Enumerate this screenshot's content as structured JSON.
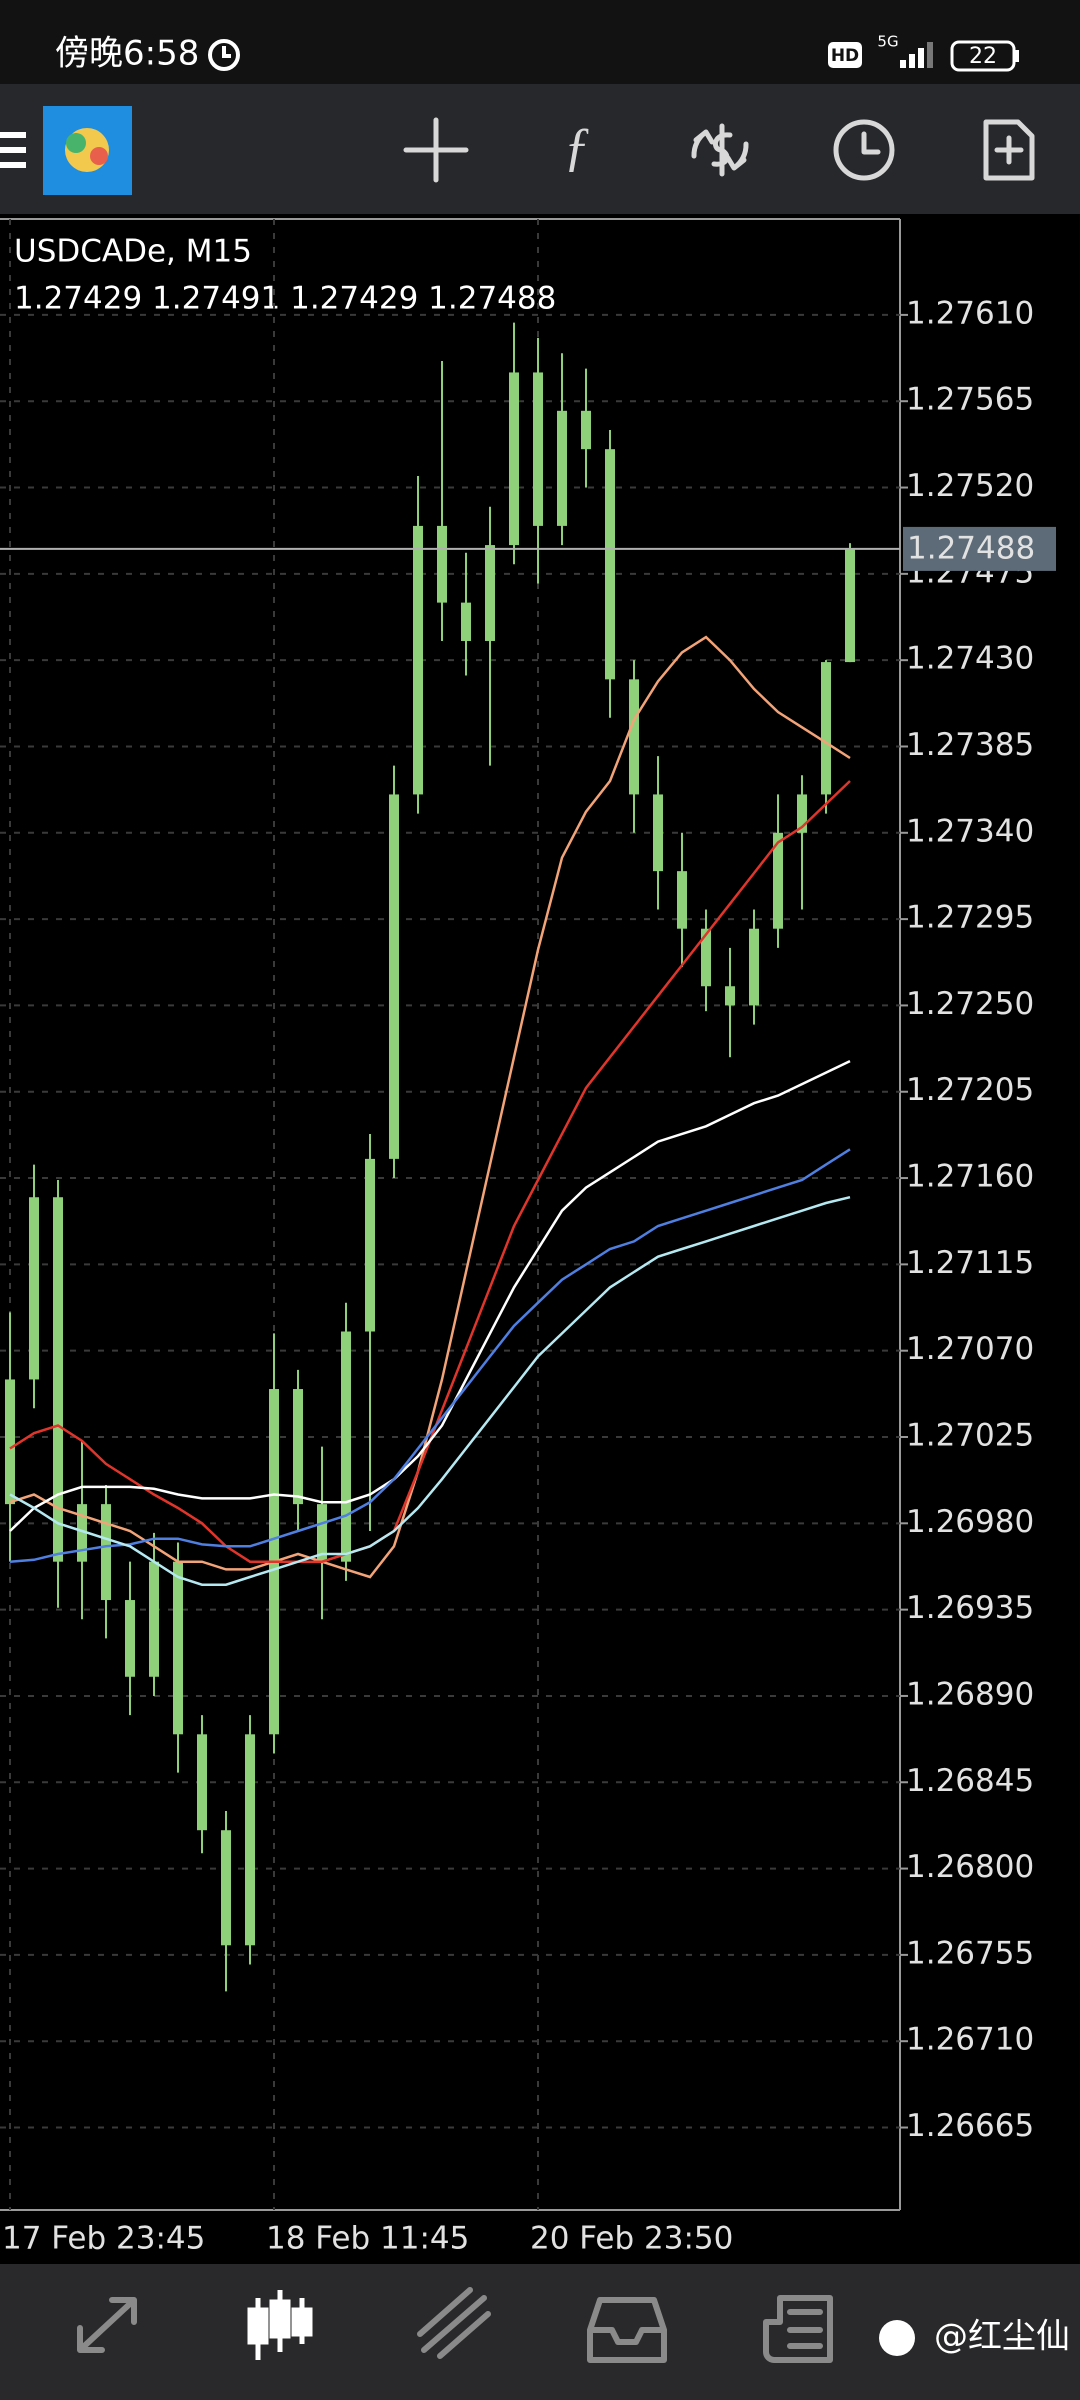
{
  "status_bar": {
    "time": "傍晚6:58",
    "hd": "HD",
    "network": "5G",
    "battery": "22"
  },
  "watermark": "@红尘仙",
  "chart_data": {
    "type": "candlestick",
    "title": "USDCADe, M15",
    "subtitle": "1.27429 1.27491 1.27429 1.27488",
    "categories": [
      "17 Feb 23:45",
      null,
      null,
      null,
      null,
      null,
      null,
      null,
      null,
      null,
      null,
      "18 Feb 11:45",
      null,
      null,
      null,
      null,
      null,
      null,
      null,
      null,
      null,
      null,
      "20 Feb 23:50",
      null,
      null,
      null,
      null,
      null,
      null,
      null,
      null,
      null,
      null,
      null,
      null,
      null
    ],
    "open": [
      1.2699,
      1.27055,
      1.2715,
      1.2696,
      1.2699,
      1.2694,
      1.269,
      1.2696,
      1.2687,
      1.2682,
      1.2676,
      1.2687,
      1.2705,
      1.2699,
      1.2696,
      1.2708,
      1.2717,
      1.2736,
      1.275,
      1.2746,
      1.2744,
      1.2749,
      1.2758,
      1.275,
      1.2756,
      1.2754,
      1.2742,
      1.2736,
      1.2732,
      1.2729,
      1.2726,
      1.2725,
      1.2729,
      1.2734,
      1.2736,
      1.27429
    ],
    "high": [
      1.2709,
      1.27167,
      1.27159,
      1.27023,
      1.27,
      1.2696,
      1.26975,
      1.2697,
      1.2688,
      1.2683,
      1.2688,
      1.27079,
      1.2706,
      1.2702,
      1.27095,
      1.27183,
      1.27375,
      1.27526,
      1.27586,
      1.27486,
      1.2751,
      1.27606,
      1.27598,
      1.2759,
      1.27582,
      1.2755,
      1.2743,
      1.2738,
      1.2734,
      1.273,
      1.2728,
      1.273,
      1.2736,
      1.2737,
      1.2743,
      1.27491
    ],
    "low": [
      1.2696,
      1.2704,
      1.26936,
      1.2693,
      1.2692,
      1.2688,
      1.2689,
      1.2685,
      1.26808,
      1.26736,
      1.2675,
      1.2686,
      1.26976,
      1.2693,
      1.2695,
      1.26976,
      1.2716,
      1.2735,
      1.2744,
      1.27422,
      1.27375,
      1.2748,
      1.2747,
      1.2749,
      1.2752,
      1.274,
      1.2734,
      1.273,
      1.2727,
      1.27247,
      1.27223,
      1.2724,
      1.2728,
      1.273,
      1.2735,
      1.27429
    ],
    "close": [
      1.27055,
      1.2715,
      1.2696,
      1.2699,
      1.2694,
      1.269,
      1.2696,
      1.2687,
      1.2682,
      1.2676,
      1.2687,
      1.2705,
      1.2699,
      1.2696,
      1.2708,
      1.2717,
      1.2736,
      1.275,
      1.2746,
      1.2744,
      1.2749,
      1.2758,
      1.275,
      1.2756,
      1.2754,
      1.2742,
      1.2736,
      1.2732,
      1.2729,
      1.2726,
      1.2725,
      1.2729,
      1.2734,
      1.2736,
      1.27429,
      1.27488
    ],
    "color": "#8fd17a",
    "series": [
      {
        "color": "#f2a377",
        "values": [
          1.26991,
          1.26995,
          1.26988,
          1.26984,
          1.2698,
          1.26976,
          1.26968,
          1.2696,
          1.2696,
          1.26956,
          1.26956,
          1.2696,
          1.26964,
          1.2696,
          1.26956,
          1.26952,
          1.26968,
          1.27007,
          1.27055,
          1.27111,
          1.27167,
          1.27223,
          1.27279,
          1.27327,
          1.27351,
          1.27367,
          1.27399,
          1.27419,
          1.27434,
          1.27442,
          1.2743,
          1.27415,
          1.27403,
          1.27395,
          1.27387,
          1.27379
        ]
      },
      {
        "color": "#e0352b",
        "values": [
          1.27019,
          1.27027,
          1.27031,
          1.27023,
          1.27011,
          1.27003,
          1.26995,
          1.26988,
          1.2698,
          1.26968,
          1.2696,
          1.2696,
          1.2696,
          1.2696,
          1.26964,
          1.26968,
          1.26976,
          1.27007,
          1.27039,
          1.27071,
          1.27103,
          1.27135,
          1.27159,
          1.27183,
          1.27207,
          1.27223,
          1.27239,
          1.27255,
          1.27271,
          1.27287,
          1.27303,
          1.27319,
          1.27335,
          1.27343,
          1.27355,
          1.27367
        ]
      },
      {
        "color": "#ffffff",
        "values": [
          1.26976,
          1.26988,
          1.26995,
          1.26999,
          1.26999,
          1.26999,
          1.26998,
          1.26995,
          1.26993,
          1.26993,
          1.26993,
          1.26995,
          1.26994,
          1.26991,
          1.26991,
          1.26995,
          1.27003,
          1.27015,
          1.27031,
          1.27055,
          1.27079,
          1.27103,
          1.27123,
          1.27143,
          1.27155,
          1.27163,
          1.27171,
          1.27179,
          1.27183,
          1.27187,
          1.27193,
          1.27199,
          1.27203,
          1.27209,
          1.27215,
          1.27221
        ]
      },
      {
        "color": "#4f7fe0",
        "values": [
          1.2696,
          1.26961,
          1.26964,
          1.26966,
          1.26968,
          1.26969,
          1.26972,
          1.26972,
          1.26969,
          1.26968,
          1.26968,
          1.26972,
          1.26976,
          1.2698,
          1.26984,
          1.26991,
          1.27003,
          1.27019,
          1.27035,
          1.27051,
          1.27067,
          1.27083,
          1.27095,
          1.27107,
          1.27115,
          1.27123,
          1.27127,
          1.27135,
          1.27139,
          1.27143,
          1.27147,
          1.27151,
          1.27155,
          1.27159,
          1.27167,
          1.27175
        ]
      },
      {
        "color": "#b5e9f2",
        "values": [
          1.26995,
          1.26988,
          1.2698,
          1.26976,
          1.26972,
          1.26968,
          1.2696,
          1.26952,
          1.26948,
          1.26948,
          1.26952,
          1.26956,
          1.2696,
          1.26964,
          1.26964,
          1.26968,
          1.26976,
          1.26988,
          1.27003,
          1.27019,
          1.27035,
          1.27051,
          1.27067,
          1.27079,
          1.27091,
          1.27103,
          1.27111,
          1.27119,
          1.27123,
          1.27127,
          1.27131,
          1.27135,
          1.27139,
          1.27143,
          1.27147,
          1.2715
        ]
      }
    ],
    "current_price": 1.27488,
    "ylim": [
      1.26622,
      1.2766
    ],
    "yticks": [
      {
        "value": 1.2761,
        "label": "1.27610"
      },
      1.27565,
      {
        "value": 1.2752,
        "label": "1.27520"
      },
      1.27475,
      {
        "value": 1.2743,
        "label": "1.27430"
      },
      1.27385,
      {
        "value": 1.2734,
        "label": "1.27340"
      },
      1.27295,
      {
        "value": 1.2725,
        "label": "1.27250"
      },
      1.27205,
      {
        "value": 1.2716,
        "label": "1.27160"
      },
      1.27115,
      {
        "value": 1.2707,
        "label": "1.27070"
      },
      1.27025,
      {
        "value": 1.2698,
        "label": "1.26980"
      },
      1.26935,
      {
        "value": 1.2689,
        "label": "1.26890"
      },
      1.26845,
      {
        "value": 1.268,
        "label": "1.26800"
      },
      1.26755,
      {
        "value": 1.2671,
        "label": "1.26710"
      },
      1.26665
    ],
    "grid": true
  }
}
